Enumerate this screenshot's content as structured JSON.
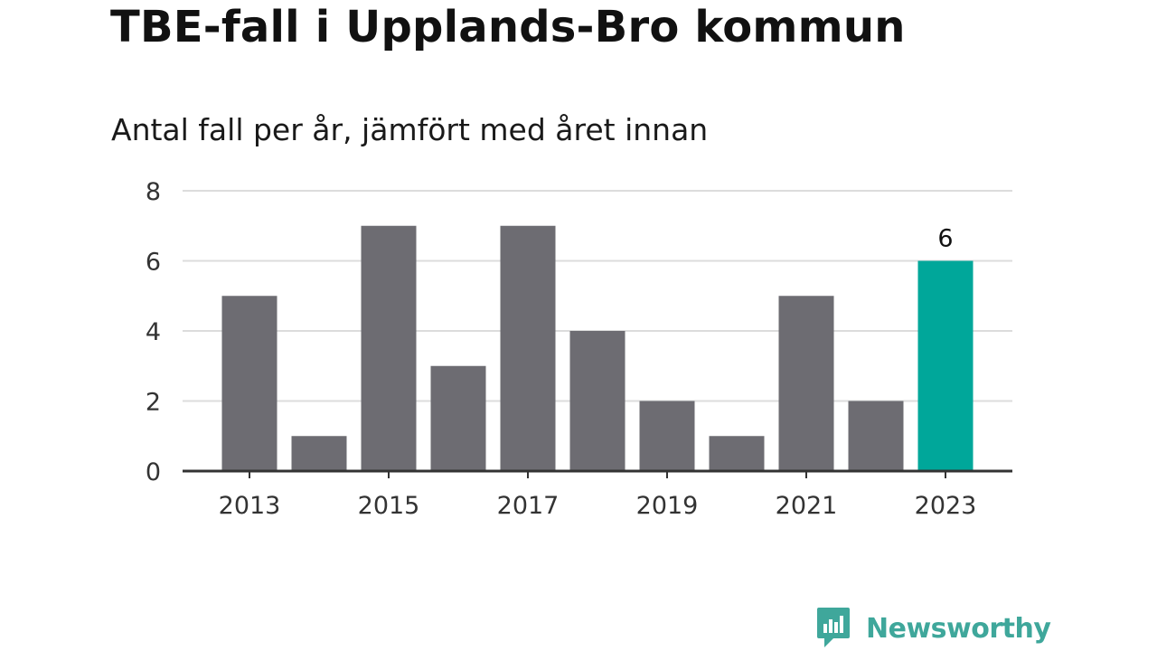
{
  "chart_data": {
    "type": "bar",
    "title": "TBE-fall i Upplands-Bro kommun",
    "subtitle": "Antal fall per år, jämfört med året innan",
    "categories": [
      "2013",
      "2014",
      "2015",
      "2016",
      "2017",
      "2018",
      "2019",
      "2020",
      "2021",
      "2022",
      "2023"
    ],
    "values": [
      5,
      1,
      7,
      3,
      7,
      4,
      2,
      1,
      5,
      2,
      6
    ],
    "x_tick_labels": [
      "2013",
      "2015",
      "2017",
      "2019",
      "2021",
      "2023"
    ],
    "y_ticks": [
      0,
      2,
      4,
      6,
      8
    ],
    "ylim": [
      0,
      8
    ],
    "xlabel": "",
    "ylabel": "",
    "grid": true,
    "highlight": {
      "category": "2023",
      "value_label": "6"
    },
    "colors": {
      "bar": "#6d6c72",
      "highlight": "#00a79a",
      "grid": "#dcdcdc",
      "axis": "#333333"
    }
  },
  "brand": {
    "name": "Newsworthy",
    "color": "#3fa79b"
  }
}
